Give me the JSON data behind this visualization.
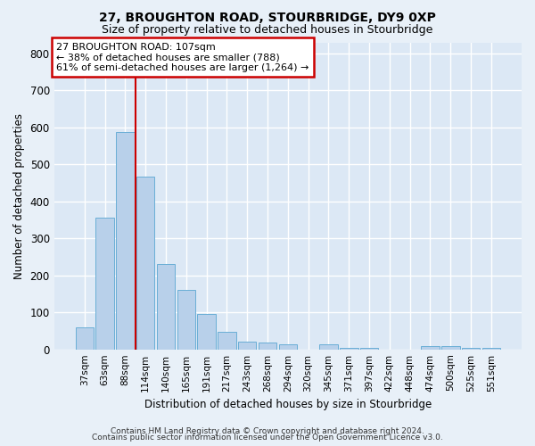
{
  "title": "27, BROUGHTON ROAD, STOURBRIDGE, DY9 0XP",
  "subtitle": "Size of property relative to detached houses in Stourbridge",
  "xlabel": "Distribution of detached houses by size in Stourbridge",
  "ylabel": "Number of detached properties",
  "footer_line1": "Contains HM Land Registry data © Crown copyright and database right 2024.",
  "footer_line2": "Contains public sector information licensed under the Open Government Licence v3.0.",
  "categories": [
    "37sqm",
    "63sqm",
    "88sqm",
    "114sqm",
    "140sqm",
    "165sqm",
    "191sqm",
    "217sqm",
    "243sqm",
    "268sqm",
    "294sqm",
    "320sqm",
    "345sqm",
    "371sqm",
    "397sqm",
    "422sqm",
    "448sqm",
    "474sqm",
    "500sqm",
    "525sqm",
    "551sqm"
  ],
  "values": [
    60,
    357,
    588,
    468,
    230,
    160,
    95,
    48,
    22,
    18,
    14,
    0,
    14,
    5,
    5,
    0,
    0,
    10,
    10,
    5,
    5
  ],
  "bar_color": "#b8d0ea",
  "bar_edge_color": "#6aaed6",
  "background_color": "#dce8f5",
  "fig_background_color": "#e8f0f8",
  "grid_color": "#ffffff",
  "red_line_index": 2.5,
  "annotation_text": "27 BROUGHTON ROAD: 107sqm\n← 38% of detached houses are smaller (788)\n61% of semi-detached houses are larger (1,264) →",
  "annotation_box_edgecolor": "#cc0000",
  "ylim": [
    0,
    830
  ],
  "yticks": [
    0,
    100,
    200,
    300,
    400,
    500,
    600,
    700,
    800
  ]
}
